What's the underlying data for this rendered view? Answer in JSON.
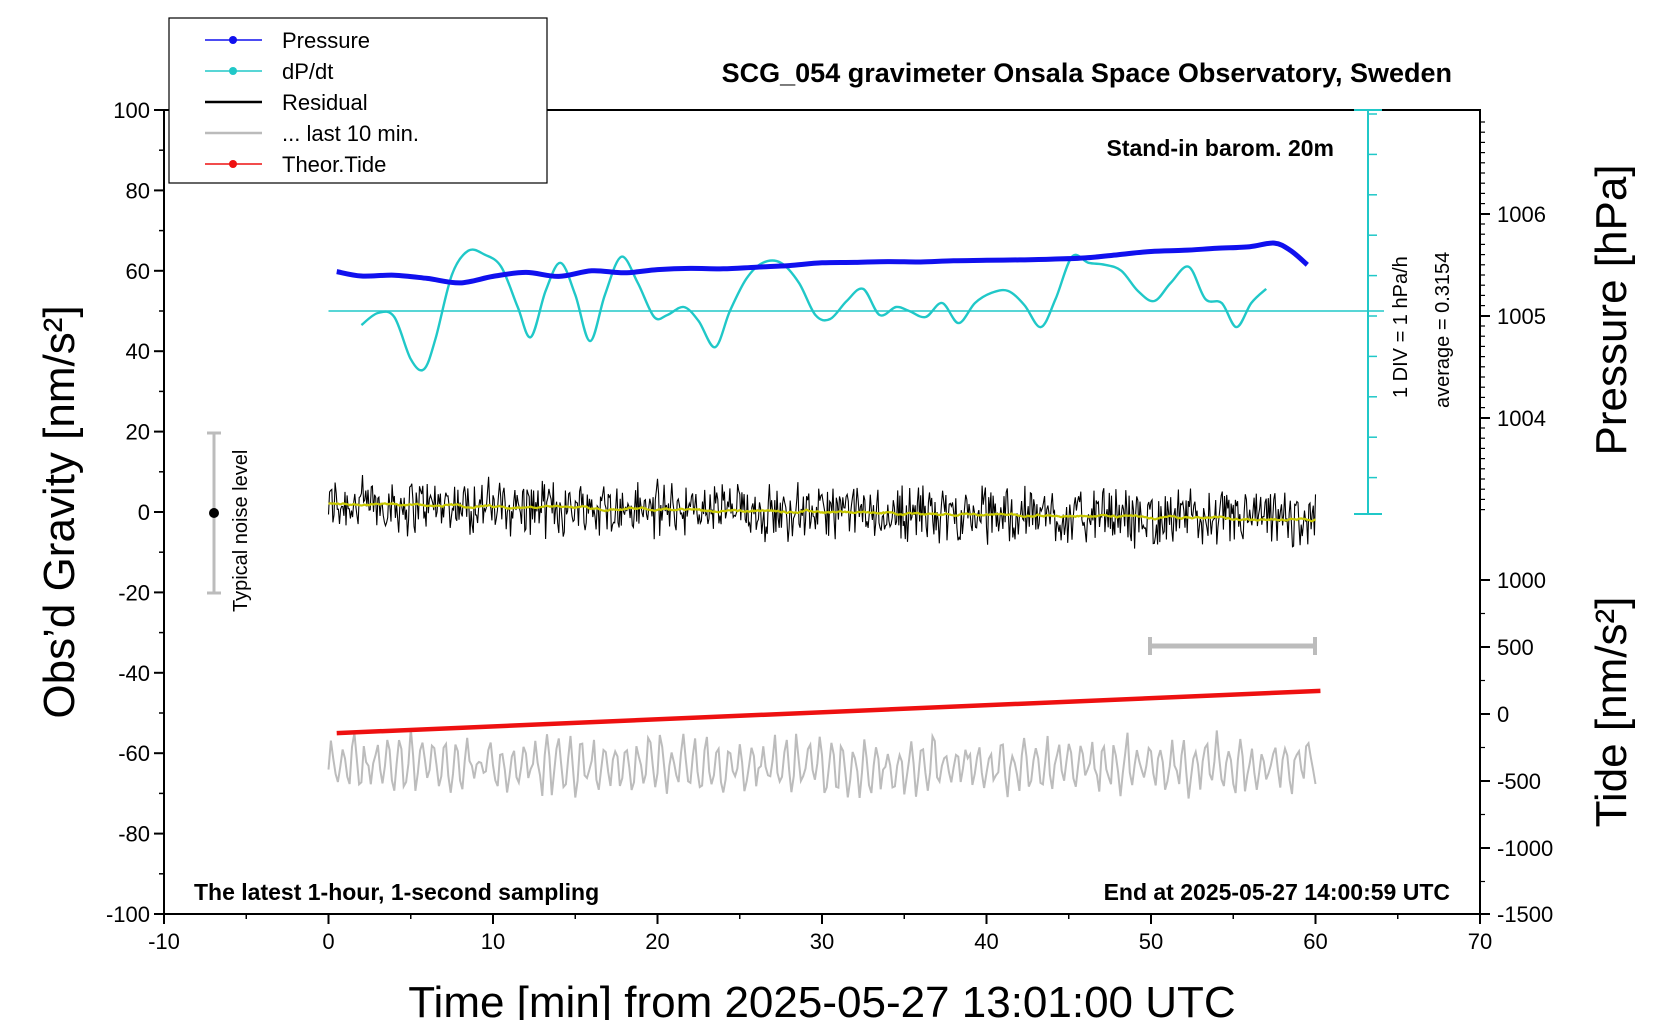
{
  "chart_data": {
    "type": "line",
    "title": "SCG_054 gravimeter Onsala Space Observatory, Sweden",
    "xlabel": "Time [min] from 2025-05-27 13:01:00 UTC",
    "ylabel_left": "Obs’d Gravity [nm/s²]",
    "ylabel_right_top": "Pressure [hPa]",
    "ylabel_right_bottom": "Tide [nm/s²]",
    "xlim": [
      -10,
      70
    ],
    "ylim_left": [
      -100,
      100
    ],
    "x_ticks": [
      "-10",
      "0",
      "10",
      "20",
      "30",
      "40",
      "50",
      "60",
      "70"
    ],
    "y_ticks_left": [
      "100",
      "80",
      "60",
      "40",
      "20",
      "0",
      "-20",
      "-40",
      "-60",
      "-80",
      "-100"
    ],
    "pressure_ticks": [
      "1006",
      "1005",
      "1004"
    ],
    "tide_ticks": [
      "1000",
      "500",
      "0",
      "-500",
      "-1000",
      "-1500"
    ],
    "legend": [
      {
        "name": "Pressure",
        "color": "#1010ee",
        "marker": "dot"
      },
      {
        "name": "dP/dt",
        "color": "#20c8c8",
        "marker": "dot"
      },
      {
        "name": "Residual",
        "color": "#000000",
        "marker": "line"
      },
      {
        "name": "... last 10 min.",
        "color": "#bbbbbb",
        "marker": "line"
      },
      {
        "name": "Theor.Tide",
        "color": "#ee1010",
        "marker": "dot"
      }
    ],
    "annotations": {
      "barometer": "Stand-in barom. 20m",
      "div_scale": "1 DIV = 1 hPa/h",
      "average": "average = 0.3154",
      "noise": "Typical noise level",
      "bottom_left": "The latest 1-hour, 1-second sampling",
      "bottom_right": "End at 2025-05-27 14:00:59 UTC"
    },
    "series": {
      "pressure": {
        "name": "Pressure",
        "x": [
          0.5,
          2,
          4,
          6,
          8,
          10,
          12,
          14,
          16,
          18,
          20,
          22,
          24,
          26,
          28,
          30,
          32,
          34,
          36,
          38,
          40,
          42,
          44,
          46,
          48,
          50,
          52,
          54,
          56,
          57.5,
          58.5,
          59.5
        ],
        "values": [
          59.8,
          58.7,
          58.9,
          58.1,
          57.0,
          58.6,
          59.6,
          58.6,
          60.0,
          59.5,
          60.3,
          60.6,
          60.5,
          60.9,
          61.3,
          62.0,
          62.1,
          62.3,
          62.2,
          62.5,
          62.6,
          62.7,
          62.9,
          63.2,
          64.0,
          64.8,
          65.1,
          65.6,
          66.0,
          66.9,
          65.0,
          61.5
        ]
      },
      "dpdt": {
        "name": "dP/dt",
        "x": [
          2,
          3,
          4,
          5,
          5.8,
          6.5,
          7.5,
          8.5,
          9.5,
          10.5,
          11.5,
          12.3,
          13.2,
          14.1,
          15,
          15.9,
          16.8,
          17.8,
          18.8,
          19.8,
          20.6,
          21.6,
          22.5,
          23.5,
          24.4,
          25.4,
          26.4,
          27.5,
          28.6,
          29.6,
          30.5,
          31.5,
          32.5,
          33.5,
          34.5,
          35.3,
          36.3,
          37.3,
          38.3,
          39.3,
          40.3,
          41.3,
          42.3,
          43.3,
          44.2,
          45.2,
          46.2,
          47.2,
          48.2,
          49.2,
          50.2,
          51.2,
          52.3,
          53.3,
          54.3,
          55.2,
          56.1,
          57
        ],
        "values": [
          46.5,
          49.5,
          48.5,
          38,
          35.5,
          43,
          59,
          65,
          64,
          61,
          51,
          43.5,
          55,
          62,
          54,
          42.5,
          54,
          63.5,
          57,
          48.5,
          49,
          51,
          47.5,
          41,
          50,
          58,
          62,
          62,
          57,
          49,
          48,
          52.5,
          55.5,
          49,
          51,
          50,
          48.5,
          52,
          47,
          52,
          54.5,
          55,
          51.5,
          46,
          53,
          63.5,
          62,
          61.5,
          60,
          55,
          52.5,
          57,
          61,
          53,
          52,
          46,
          52,
          55.5
        ]
      },
      "tide": {
        "name": "Theor.Tide",
        "x": [
          0.5,
          60.3
        ],
        "values": [
          -55.0,
          -44.5
        ]
      },
      "residual": {
        "name": "Residual",
        "x_start": 0,
        "x_end": 60,
        "mean_start": 2,
        "mean_end": -2,
        "amplitude": 6
      },
      "last10": {
        "name": "... last 10 min.",
        "x_start": 0,
        "x_end": 60,
        "center": -63,
        "amplitude": 6
      }
    }
  }
}
